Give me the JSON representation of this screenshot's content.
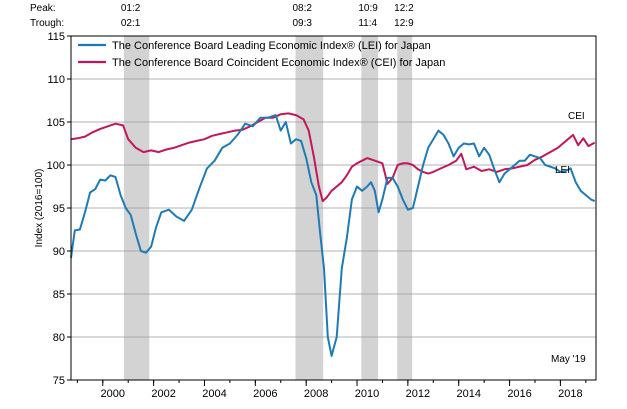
{
  "chart_data": {
    "type": "line",
    "ylabel": "Index (2016=100)",
    "ylim": [
      75,
      115
    ],
    "yticks": [
      75,
      80,
      85,
      90,
      95,
      100,
      105,
      110,
      115
    ],
    "xlim": [
      1998.75,
      2019.4
    ],
    "xticks": [
      2000,
      2002,
      2004,
      2006,
      2008,
      2010,
      2012,
      2014,
      2016,
      2018
    ],
    "xtick_labels": [
      "2000",
      "2002",
      "2004",
      "2006",
      "2008",
      "2010",
      "2012",
      "2014",
      "2016",
      "2018"
    ],
    "grid": true,
    "legend_position": "top-left",
    "date_note": "May '19",
    "cycle_labels": {
      "peak": "Peak:",
      "trough": "Trough:"
    },
    "recessions": [
      {
        "peak": "01:2",
        "trough": "02:1",
        "start": 2000.83,
        "end": 2001.83
      },
      {
        "peak": "08:2",
        "trough": "09:3",
        "start": 2007.58,
        "end": 2008.67
      },
      {
        "peak": "10:9",
        "trough": "11:4",
        "start": 2010.17,
        "end": 2010.83
      },
      {
        "peak": "12:2",
        "trough": "12:9",
        "start": 2011.58,
        "end": 2012.17
      }
    ],
    "series": [
      {
        "name": "The Conference Board Leading Economic Index® (LEI) for Japan",
        "label": "LEI",
        "color": "#1f7bb5",
        "x": [
          1998.75,
          1998.9,
          1999.1,
          1999.3,
          1999.5,
          1999.7,
          1999.9,
          2000.1,
          2000.3,
          2000.5,
          2000.7,
          2000.9,
          2001.1,
          2001.3,
          2001.5,
          2001.7,
          2001.9,
          2002.1,
          2002.3,
          2002.6,
          2002.9,
          2003.2,
          2003.5,
          2003.8,
          2004.1,
          2004.4,
          2004.7,
          2005.0,
          2005.3,
          2005.6,
          2005.9,
          2006.2,
          2006.5,
          2006.8,
          2007.0,
          2007.2,
          2007.4,
          2007.6,
          2007.8,
          2008.0,
          2008.2,
          2008.4,
          2008.55,
          2008.7,
          2008.85,
          2009.0,
          2009.2,
          2009.4,
          2009.6,
          2009.8,
          2010.0,
          2010.2,
          2010.4,
          2010.55,
          2010.7,
          2010.85,
          2011.0,
          2011.2,
          2011.4,
          2011.6,
          2011.8,
          2012.0,
          2012.2,
          2012.4,
          2012.6,
          2012.8,
          2013.0,
          2013.2,
          2013.4,
          2013.6,
          2013.8,
          2014.0,
          2014.2,
          2014.4,
          2014.6,
          2014.8,
          2015.0,
          2015.2,
          2015.4,
          2015.6,
          2015.8,
          2016.0,
          2016.2,
          2016.4,
          2016.6,
          2016.8,
          2017.0,
          2017.2,
          2017.4,
          2017.6,
          2017.8,
          2018.0,
          2018.2,
          2018.4,
          2018.6,
          2018.8,
          2019.0,
          2019.2,
          2019.35
        ],
        "values": [
          89.2,
          92.4,
          92.5,
          94.5,
          96.8,
          97.2,
          98.3,
          98.2,
          98.8,
          98.6,
          96.5,
          95.0,
          94.2,
          92.0,
          90.0,
          89.8,
          90.5,
          92.8,
          94.5,
          94.8,
          94.0,
          93.5,
          94.8,
          97.3,
          99.6,
          100.5,
          102.0,
          102.5,
          103.5,
          104.8,
          104.5,
          105.5,
          105.5,
          105.8,
          104.0,
          105.0,
          102.5,
          103.0,
          102.8,
          100.8,
          98.0,
          96.5,
          92.0,
          88.0,
          80.0,
          77.8,
          80.0,
          88.0,
          91.5,
          96.0,
          97.5,
          97.0,
          97.5,
          98.0,
          97.0,
          94.5,
          96.0,
          98.5,
          98.5,
          97.5,
          96.0,
          94.8,
          95.0,
          97.5,
          100.0,
          102.0,
          103.0,
          104.0,
          103.5,
          102.5,
          101.0,
          102.0,
          102.5,
          102.4,
          102.5,
          101.0,
          102.0,
          101.2,
          99.5,
          98.0,
          99.0,
          99.5,
          100.0,
          100.5,
          100.5,
          101.2,
          101.0,
          100.8,
          100.0,
          99.8,
          99.6,
          99.2,
          99.3,
          99.6,
          98.0,
          97.0,
          96.5,
          96.0,
          95.8
        ]
      },
      {
        "name": "The Conference Board Coincident Economic Index® (CEI) for Japan",
        "label": "CEI",
        "color": "#c2185b",
        "x": [
          1998.75,
          1999.0,
          1999.3,
          1999.6,
          1999.9,
          2000.2,
          2000.5,
          2000.8,
          2001.0,
          2001.3,
          2001.6,
          2001.9,
          2002.2,
          2002.5,
          2002.8,
          2003.1,
          2003.4,
          2003.7,
          2004.0,
          2004.3,
          2004.6,
          2004.9,
          2005.2,
          2005.5,
          2005.8,
          2006.1,
          2006.4,
          2006.7,
          2007.0,
          2007.3,
          2007.6,
          2007.9,
          2008.1,
          2008.3,
          2008.5,
          2008.65,
          2008.8,
          2009.0,
          2009.2,
          2009.4,
          2009.6,
          2009.8,
          2010.0,
          2010.2,
          2010.4,
          2010.6,
          2010.8,
          2011.0,
          2011.2,
          2011.4,
          2011.6,
          2011.8,
          2012.0,
          2012.2,
          2012.4,
          2012.6,
          2012.8,
          2013.0,
          2013.3,
          2013.6,
          2013.9,
          2014.1,
          2014.3,
          2014.6,
          2014.9,
          2015.2,
          2015.5,
          2015.8,
          2016.1,
          2016.4,
          2016.7,
          2017.0,
          2017.3,
          2017.6,
          2017.9,
          2018.1,
          2018.3,
          2018.5,
          2018.7,
          2018.9,
          2019.1,
          2019.35
        ],
        "values": [
          103.0,
          103.1,
          103.3,
          103.8,
          104.2,
          104.5,
          104.8,
          104.6,
          103.0,
          102.0,
          101.5,
          101.7,
          101.5,
          101.8,
          102.0,
          102.3,
          102.6,
          102.8,
          103.0,
          103.4,
          103.6,
          103.8,
          104.0,
          104.1,
          104.5,
          105.0,
          105.5,
          105.5,
          105.9,
          106.0,
          105.8,
          105.3,
          104.0,
          101.0,
          97.5,
          95.8,
          96.2,
          97.0,
          97.5,
          98.0,
          98.8,
          99.8,
          100.2,
          100.5,
          100.8,
          100.6,
          100.4,
          100.2,
          97.8,
          98.5,
          100.0,
          100.2,
          100.2,
          100.0,
          99.5,
          99.2,
          99.0,
          99.2,
          99.6,
          100.0,
          100.5,
          101.3,
          99.5,
          99.8,
          99.3,
          99.5,
          99.2,
          99.5,
          99.6,
          99.8,
          100.0,
          100.6,
          101.0,
          101.5,
          102.0,
          102.5,
          103.0,
          103.5,
          102.3,
          103.1,
          102.2,
          102.6
        ]
      }
    ]
  }
}
